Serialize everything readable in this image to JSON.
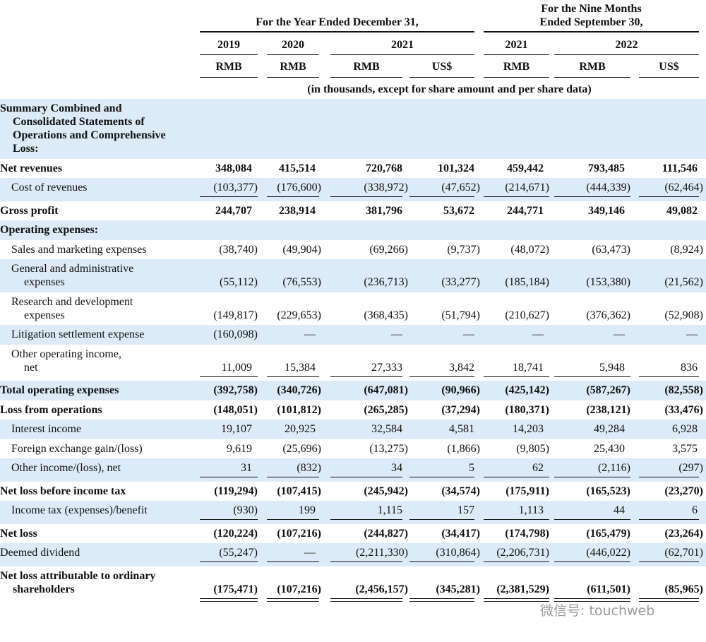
{
  "header": {
    "group1": "For the Year Ended December 31,",
    "group2": [
      "For the Nine Months",
      "Ended September 30,"
    ],
    "years": [
      "2019",
      "2020",
      "2021",
      "2021",
      "2022"
    ],
    "currencies": [
      "RMB",
      "RMB",
      "RMB",
      "US$",
      "RMB",
      "RMB",
      "US$"
    ],
    "note": "(in thousands, except for share amount and per share data)"
  },
  "table": {
    "rows": [
      {
        "label": [
          "Summary Combined and",
          "Consolidated Statements of",
          "Operations and Comprehensive",
          "Loss:"
        ],
        "bold": true,
        "indent": false,
        "values": []
      },
      {
        "label": [
          "Net revenues"
        ],
        "bold": true,
        "indent": false,
        "values": [
          "348,084",
          "415,514",
          "720,768",
          "101,324",
          "459,442",
          "793,485",
          "111,546"
        ]
      },
      {
        "label": [
          "Cost of revenues"
        ],
        "bold": false,
        "indent": true,
        "underline": "single",
        "values": [
          "(103,377)",
          "(176,600)",
          "(338,972)",
          "(47,652)",
          "(214,671)",
          "(444,339)",
          "(62,464)"
        ]
      },
      {
        "label": [
          "Gross profit"
        ],
        "bold": true,
        "indent": false,
        "values": [
          "244,707",
          "238,914",
          "381,796",
          "53,672",
          "244,771",
          "349,146",
          "49,082"
        ]
      },
      {
        "label": [
          "Operating expenses:"
        ],
        "bold": true,
        "indent": false,
        "values": []
      },
      {
        "label": [
          "Sales and marketing expenses"
        ],
        "bold": false,
        "indent": true,
        "values": [
          "(38,740)",
          "(49,904)",
          "(69,266)",
          "(9,737)",
          "(48,072)",
          "(63,473)",
          "(8,924)"
        ]
      },
      {
        "label": [
          "General and administrative",
          "expenses"
        ],
        "bold": false,
        "indent": true,
        "values": [
          "(55,112)",
          "(76,553)",
          "(236,713)",
          "(33,277)",
          "(185,184)",
          "(153,380)",
          "(21,562)"
        ]
      },
      {
        "label": [
          "Research and development",
          "expenses"
        ],
        "bold": false,
        "indent": true,
        "values": [
          "(149,817)",
          "(229,653)",
          "(368,435)",
          "(51,794)",
          "(210,627)",
          "(376,362)",
          "(52,908)"
        ]
      },
      {
        "label": [
          "Litigation settlement expense"
        ],
        "bold": false,
        "indent": true,
        "values": [
          "(160,098)",
          "—",
          "—",
          "—",
          "—",
          "—",
          "—"
        ]
      },
      {
        "label": [
          "Other operating income,",
          "net"
        ],
        "bold": false,
        "indent": true,
        "underline": "single",
        "values": [
          "11,009",
          "15,384",
          "27,333",
          "3,842",
          "18,741",
          "5,948",
          "836"
        ]
      },
      {
        "label": [
          "Total operating expenses"
        ],
        "bold": true,
        "indent": false,
        "values": [
          "(392,758)",
          "(340,726)",
          "(647,081)",
          "(90,966)",
          "(425,142)",
          "(587,267)",
          "(82,558)"
        ]
      },
      {
        "label": [
          "Loss from operations"
        ],
        "bold": true,
        "indent": false,
        "values": [
          "(148,051)",
          "(101,812)",
          "(265,285)",
          "(37,294)",
          "(180,371)",
          "(238,121)",
          "(33,476)"
        ]
      },
      {
        "label": [
          "Interest income"
        ],
        "bold": false,
        "indent": true,
        "values": [
          "19,107",
          "20,925",
          "32,584",
          "4,581",
          "14,203",
          "49,284",
          "6,928"
        ]
      },
      {
        "label": [
          "Foreign exchange gain/(loss)"
        ],
        "bold": false,
        "indent": true,
        "values": [
          "9,619",
          "(25,696)",
          "(13,275)",
          "(1,866)",
          "(9,805)",
          "25,430",
          "3,575"
        ]
      },
      {
        "label": [
          "Other income/(loss), net"
        ],
        "bold": false,
        "indent": true,
        "underline": "single",
        "values": [
          "31",
          "(832)",
          "34",
          "5",
          "62",
          "(2,116)",
          "(297)"
        ]
      },
      {
        "label": [
          "Net loss before income tax"
        ],
        "bold": true,
        "indent": false,
        "values": [
          "(119,294)",
          "(107,415)",
          "(245,942)",
          "(34,574)",
          "(175,911)",
          "(165,523)",
          "(23,270)"
        ]
      },
      {
        "label": [
          "Income tax (expenses)/benefit"
        ],
        "bold": false,
        "indent": true,
        "underline": "single",
        "values": [
          "(930)",
          "199",
          "1,115",
          "157",
          "1,113",
          "44",
          "6"
        ]
      },
      {
        "label": [
          "Net loss"
        ],
        "bold": true,
        "indent": false,
        "values": [
          "(120,224)",
          "(107,216)",
          "(244,827)",
          "(34,417)",
          "(174,798)",
          "(165,479)",
          "(23,264)"
        ]
      },
      {
        "label": [
          "Deemed dividend"
        ],
        "bold": false,
        "indent": false,
        "underline": "single",
        "values": [
          "(55,247)",
          "—",
          "(2,211,330)",
          "(310,864)",
          "(2,206,731)",
          "(446,022)",
          "(62,701)"
        ]
      },
      {
        "label": [
          "Net loss attributable to ordinary",
          "shareholders"
        ],
        "bold": true,
        "indent": false,
        "underline": "double",
        "values": [
          "(175,471)",
          "(107,216)",
          "(2,456,157)",
          "(345,281)",
          "(2,381,529)",
          "(611,501)",
          "(85,965)"
        ]
      }
    ]
  },
  "watermark": "微信号: touchweb"
}
